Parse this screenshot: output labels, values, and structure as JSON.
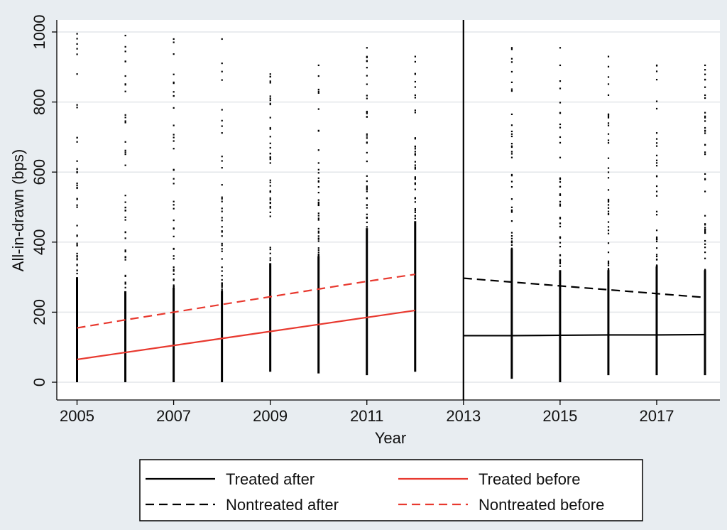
{
  "chart_data": {
    "type": "line",
    "xlabel": "Year",
    "ylabel": "All-in-drawn (bps)",
    "xlim": [
      2005,
      2018
    ],
    "ylim": [
      0,
      1000
    ],
    "x_ticks": [
      2005,
      2007,
      2009,
      2011,
      2013,
      2015,
      2017
    ],
    "y_ticks": [
      0,
      200,
      400,
      600,
      800,
      1000
    ],
    "grid": "horizontal",
    "vertical_reference_line_x": 2013,
    "legend_position": "bottom",
    "colors": {
      "treated_red": "#e8392f",
      "black": "#000000",
      "background": "#e8edf1",
      "plot_area": "#ffffff"
    },
    "series": [
      {
        "name": "Treated before",
        "style": "solid",
        "color": "#e8392f",
        "x": [
          2005,
          2006,
          2007,
          2008,
          2009,
          2010,
          2011,
          2012
        ],
        "y": [
          65,
          85,
          105,
          125,
          145,
          165,
          185,
          205
        ]
      },
      {
        "name": "Nontreated before",
        "style": "dashed",
        "color": "#e8392f",
        "x": [
          2005,
          2006,
          2007,
          2008,
          2009,
          2010,
          2011,
          2012
        ],
        "y": [
          155,
          178,
          200,
          222,
          244,
          266,
          288,
          308
        ]
      },
      {
        "name": "Treated after",
        "style": "solid",
        "color": "#000000",
        "x": [
          2013,
          2014,
          2015,
          2016,
          2017,
          2018
        ],
        "y": [
          133,
          133,
          134,
          135,
          135,
          136
        ]
      },
      {
        "name": "Nontreated after",
        "style": "dashed",
        "color": "#000000",
        "x": [
          2013,
          2014,
          2015,
          2016,
          2017,
          2018
        ],
        "y": [
          297,
          286,
          275,
          264,
          253,
          242
        ]
      }
    ],
    "scatter_columns": [
      {
        "x": 2005,
        "min": 0,
        "dense_max": 300,
        "max": 995
      },
      {
        "x": 2006,
        "min": 0,
        "dense_max": 260,
        "max": 990
      },
      {
        "x": 2007,
        "min": 0,
        "dense_max": 270,
        "max": 980
      },
      {
        "x": 2008,
        "min": 0,
        "dense_max": 260,
        "max": 980
      },
      {
        "x": 2009,
        "min": 30,
        "dense_max": 340,
        "max": 880
      },
      {
        "x": 2010,
        "min": 25,
        "dense_max": 360,
        "max": 905
      },
      {
        "x": 2011,
        "min": 20,
        "dense_max": 440,
        "max": 955
      },
      {
        "x": 2012,
        "min": 30,
        "dense_max": 460,
        "max": 930
      },
      {
        "x": 2014,
        "min": 10,
        "dense_max": 380,
        "max": 955
      },
      {
        "x": 2015,
        "min": 0,
        "dense_max": 320,
        "max": 955
      },
      {
        "x": 2016,
        "min": 20,
        "dense_max": 320,
        "max": 930
      },
      {
        "x": 2017,
        "min": 20,
        "dense_max": 330,
        "max": 905
      },
      {
        "x": 2018,
        "min": 20,
        "dense_max": 320,
        "max": 905
      }
    ],
    "legend": {
      "entries": [
        {
          "label": "Treated after",
          "series": "Treated after"
        },
        {
          "label": "Treated before",
          "series": "Treated before"
        },
        {
          "label": "Nontreated after",
          "series": "Nontreated after"
        },
        {
          "label": "Nontreated before",
          "series": "Nontreated before"
        }
      ]
    }
  }
}
